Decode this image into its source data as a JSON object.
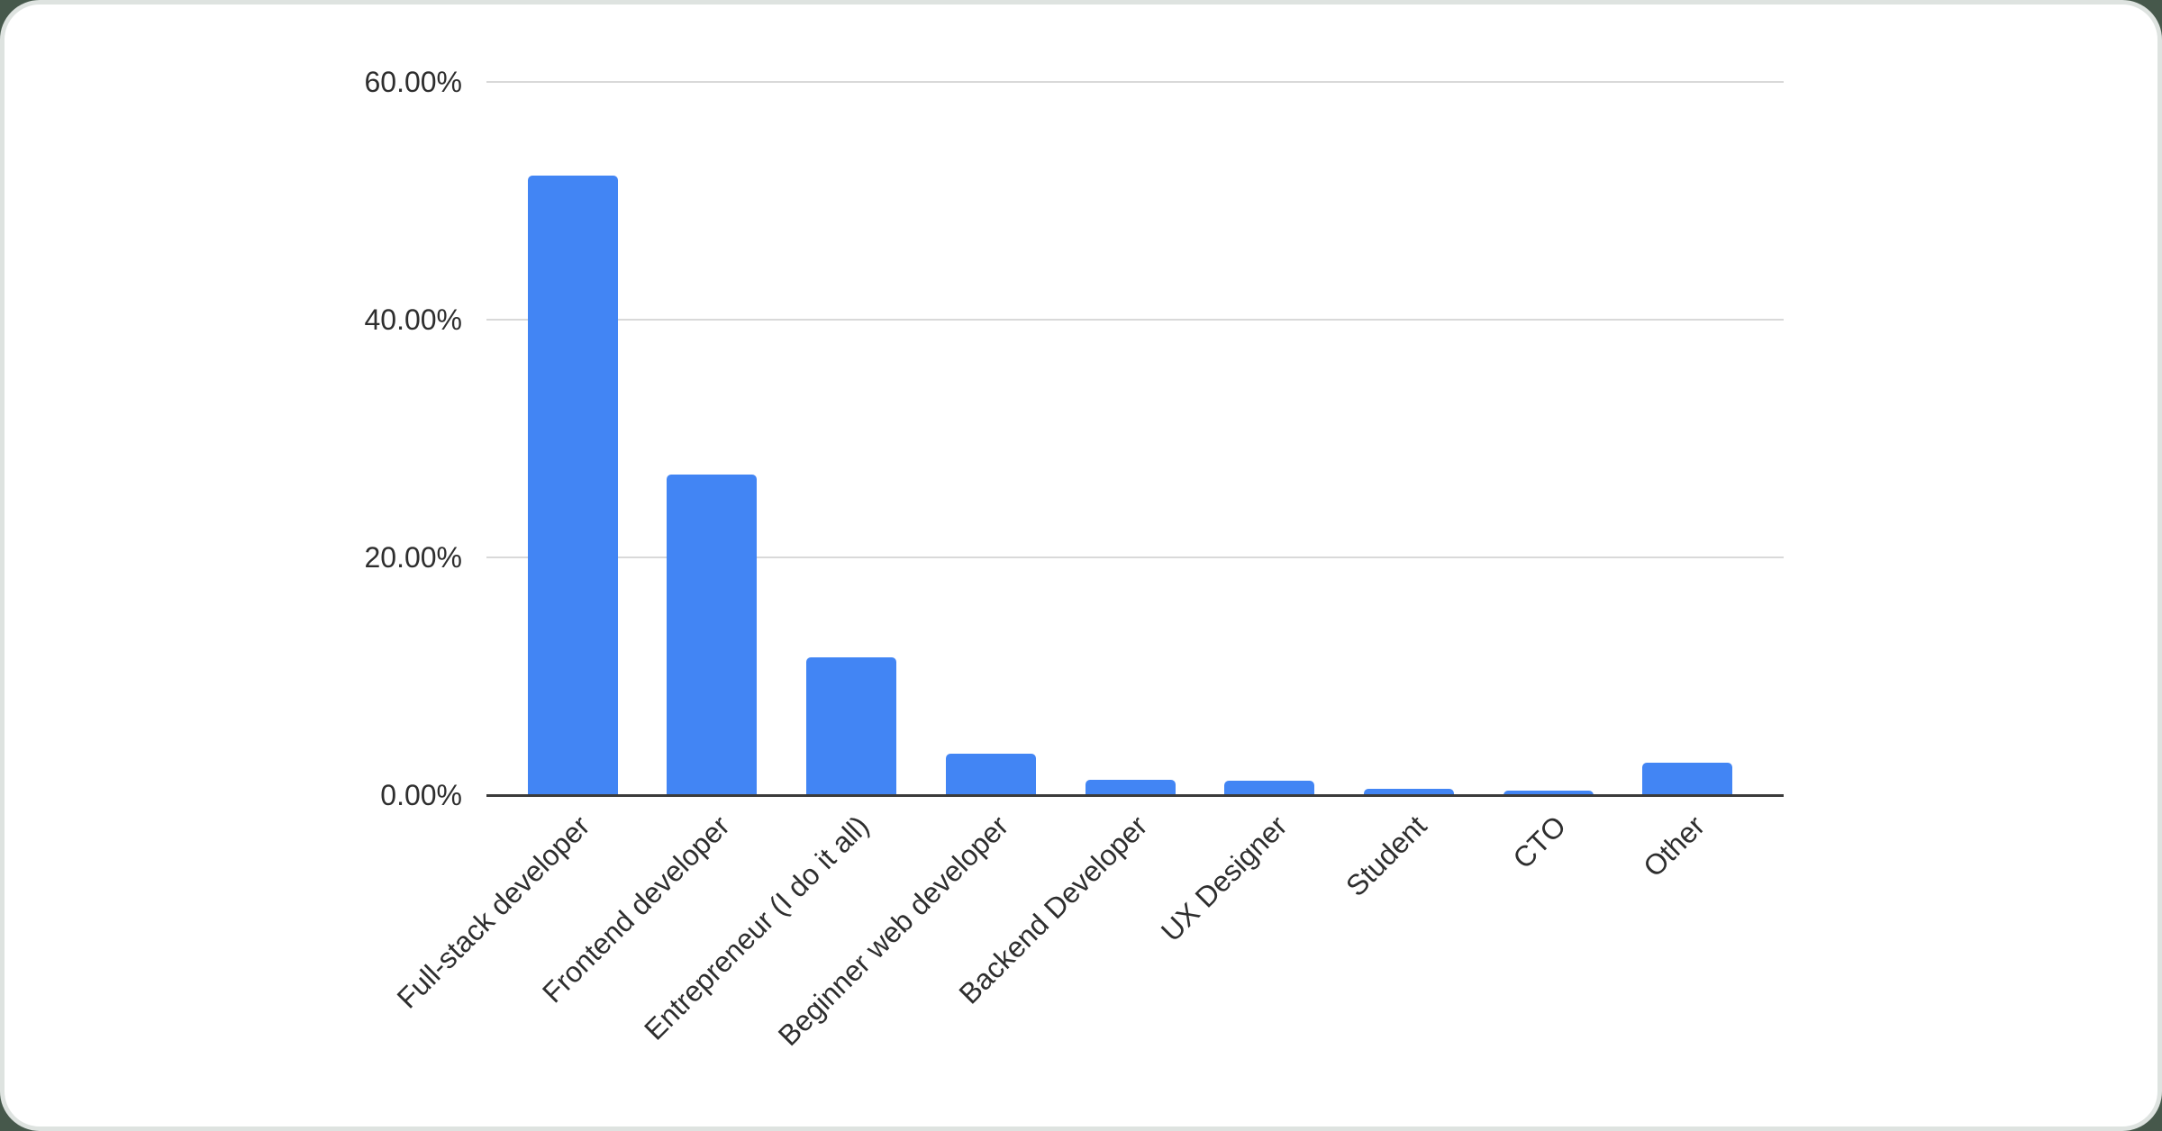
{
  "page": {
    "background_color": "#46584B",
    "card": {
      "background_color": "#FFFFFF",
      "border_color": "#DEE3E0"
    }
  },
  "chart_data": {
    "type": "bar",
    "title": "",
    "categories": [
      "Full-stack developer",
      "Frontend developer",
      "Entrepreneur (I do it all)",
      "Beginner web developer",
      "Backend Developer",
      "UX Designer",
      "Student",
      "CTO",
      "Other"
    ],
    "values": [
      52.1,
      27,
      11.6,
      3.5,
      1.3,
      1.25,
      0.5,
      0.38,
      2.7
    ],
    "value_unit": "%",
    "xlabel": "",
    "ylabel": "",
    "ylim": [
      0,
      60
    ],
    "y_axis_ticks": [
      {
        "label": "60.00%",
        "value": 60
      },
      {
        "label": "40.00%",
        "value": 40
      },
      {
        "label": "20.00%",
        "value": 20
      },
      {
        "label": "0.00%",
        "value": 0
      }
    ],
    "x_label_rotation_deg": 45,
    "grid": true,
    "legend": "none",
    "bar_color": "#4285F4",
    "gridline_color": "#D9D9D9",
    "axis_line_color": "#3B3B3B",
    "axis_label_color": "#2E2E2E"
  }
}
